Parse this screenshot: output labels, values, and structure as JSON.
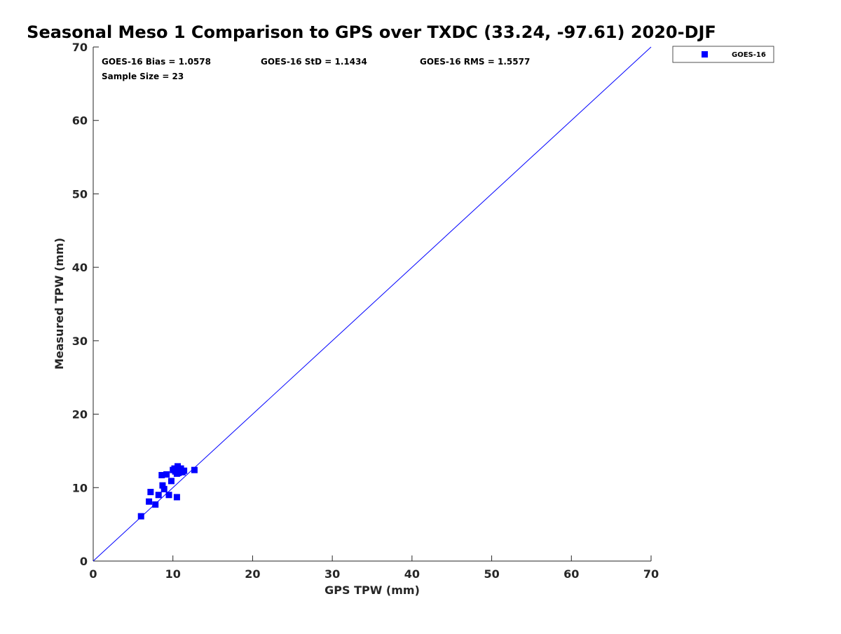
{
  "chart_data": {
    "type": "scatter",
    "title": "Seasonal Meso 1 Comparison to GPS over TXDC (33.24, -97.61) 2020-DJF",
    "xlabel": "GPS TPW (mm)",
    "ylabel": "Measured TPW (mm)",
    "xlim": [
      0,
      70
    ],
    "ylim": [
      0,
      70
    ],
    "xticks": [
      "0",
      "10",
      "20",
      "30",
      "40",
      "50",
      "60",
      "70"
    ],
    "yticks": [
      "0",
      "10",
      "20",
      "30",
      "40",
      "50",
      "60",
      "70"
    ],
    "grid": false,
    "legend_position": "outside top-right",
    "reference_line": {
      "from": [
        0,
        0
      ],
      "to": [
        70,
        70
      ],
      "color": "#0000ff"
    },
    "annotations": {
      "bias": "GOES-16 Bias = 1.0578",
      "std": "GOES-16 StD = 1.1434",
      "rms": "GOES-16 RMS = 1.5577",
      "sample_size": "Sample Size = 23"
    },
    "series": [
      {
        "name": "GOES-16",
        "marker": "square",
        "color": "#0000ff",
        "points": [
          [
            6.0,
            6.1
          ],
          [
            7.0,
            8.1
          ],
          [
            7.2,
            9.4
          ],
          [
            7.8,
            7.7
          ],
          [
            8.2,
            9.0
          ],
          [
            8.6,
            11.7
          ],
          [
            8.7,
            10.3
          ],
          [
            8.9,
            9.8
          ],
          [
            9.2,
            11.8
          ],
          [
            9.5,
            9.0
          ],
          [
            9.8,
            10.9
          ],
          [
            10.0,
            12.4
          ],
          [
            10.3,
            12.2
          ],
          [
            10.5,
            11.9
          ],
          [
            10.5,
            8.7
          ],
          [
            10.6,
            12.9
          ],
          [
            10.8,
            12.3
          ],
          [
            11.0,
            12.6
          ],
          [
            11.2,
            12.1
          ],
          [
            11.4,
            12.3
          ],
          [
            10.2,
            12.6
          ],
          [
            10.7,
            12.0
          ],
          [
            12.7,
            12.4
          ]
        ]
      }
    ]
  }
}
